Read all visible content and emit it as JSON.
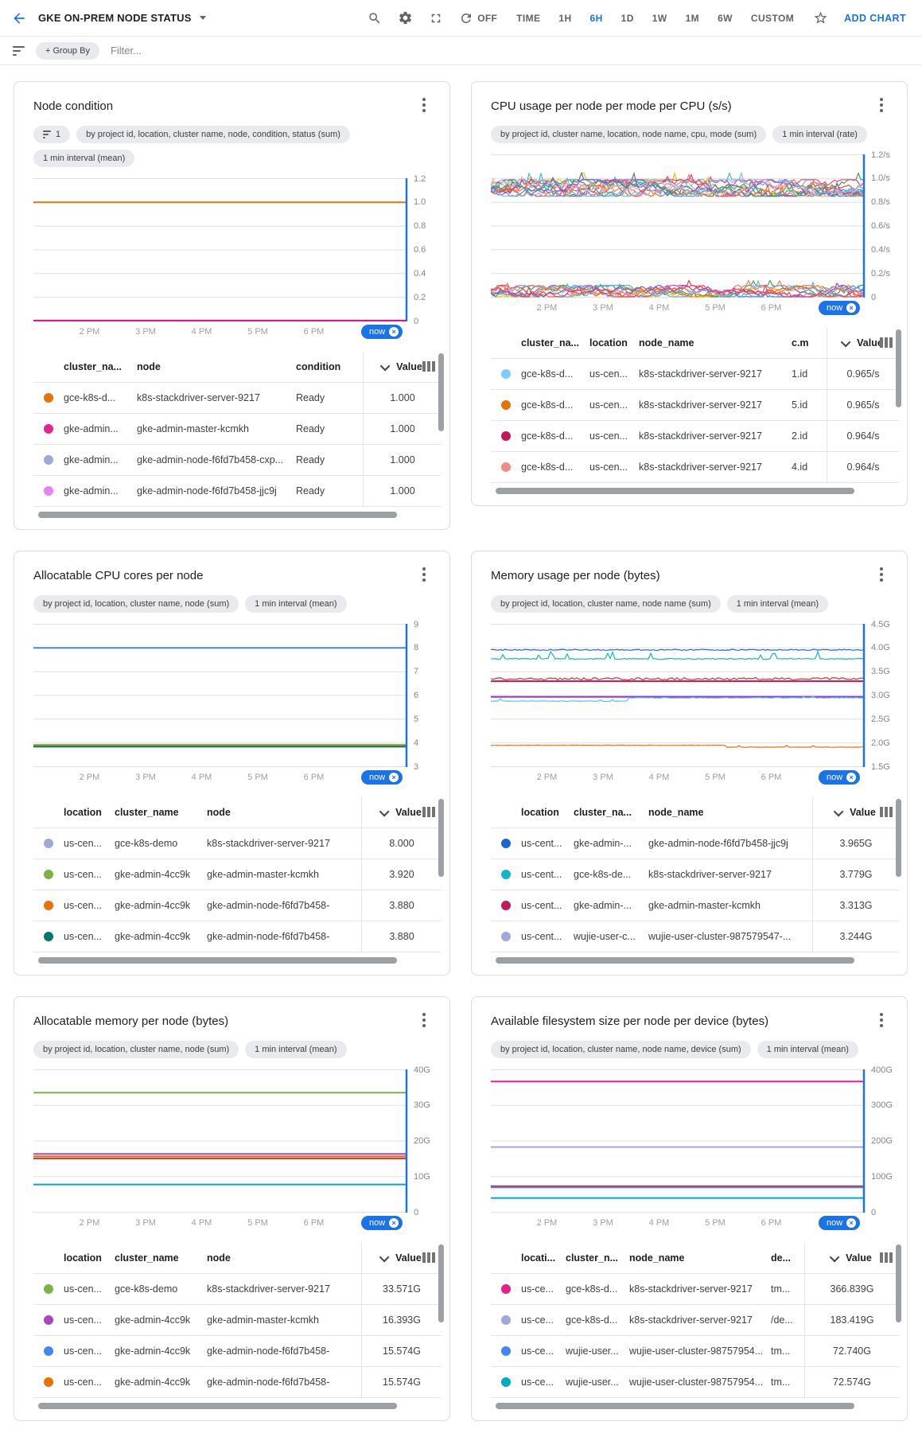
{
  "app_bar": {
    "title": "GKE ON-PREM NODE STATUS",
    "refresh_label": "OFF",
    "time_ranges": [
      "TIME",
      "1H",
      "6H",
      "1D",
      "1W",
      "1M",
      "6W",
      "CUSTOM"
    ],
    "active_range": "6H",
    "add_chart_label": "ADD CHART"
  },
  "filter_bar": {
    "group_by_label": "+ Group By",
    "filter_placeholder": "Filter..."
  },
  "colors": {
    "accent_blue": "#1a73e8",
    "now_line": "#1a73e8",
    "gridline": "#e0e0e0"
  },
  "cards": [
    {
      "title": "Node condition",
      "filter_chip_count": "1",
      "chips": [
        "by project id, location, cluster name, node, condition, status (sum)",
        "1 min interval (mean)"
      ],
      "y_labels": [
        "1.2",
        "1.0",
        "0.8",
        "0.6",
        "0.4",
        "0.2",
        "0"
      ],
      "x_labels": [
        "2 PM",
        "3 PM",
        "4 PM",
        "5 PM",
        "6 PM"
      ],
      "now_label": "now",
      "chart": {
        "type": "line",
        "ymin": 0,
        "ymax": 1.2,
        "series": [
          {
            "color": "#e8710a",
            "style": "flat",
            "value": 1.0
          },
          {
            "color": "#f50087",
            "style": "flat",
            "value": 0.004
          }
        ]
      },
      "table": {
        "columns": [
          "cluster_na...",
          "node",
          "condition"
        ],
        "value_header": "Value",
        "rows": [
          {
            "dot": "#e8710a",
            "cells": [
              "gce-k8s-d...",
              "k8s-stackdriver-server-9217",
              "Ready"
            ],
            "value": "1.000"
          },
          {
            "dot": "#e52592",
            "cells": [
              "gke-admin...",
              "gke-admin-master-kcmkh",
              "Ready"
            ],
            "value": "1.000"
          },
          {
            "dot": "#9fa8da",
            "cells": [
              "gke-admin...",
              "gke-admin-node-f6fd7b458-cxp...",
              "Ready"
            ],
            "value": "1.000"
          },
          {
            "dot": "#ea80fc",
            "cells": [
              "gke-admin...",
              "gke-admin-node-f6fd7b458-jjc9j",
              "Ready"
            ],
            "value": "1.000"
          }
        ]
      }
    },
    {
      "title": "CPU usage per node per mode per CPU (s/s)",
      "chips": [
        "by project id, cluster name, location, node name, cpu, mode (sum)",
        "1 min interval (rate)"
      ],
      "y_labels": [
        "1.2/s",
        "1.0/s",
        "0.8/s",
        "0.6/s",
        "0.4/s",
        "0.2/s",
        "0"
      ],
      "x_labels": [
        "2 PM",
        "3 PM",
        "4 PM",
        "5 PM",
        "6 PM"
      ],
      "now_label": "now",
      "chart": {
        "type": "line",
        "ymin": 0,
        "ymax": 1.2,
        "bands": [
          {
            "base": 0.92,
            "amp": 0.07,
            "count": 14
          },
          {
            "base": 0.05,
            "amp": 0.05,
            "count": 10
          }
        ],
        "palette": [
          "#4285f4",
          "#ea4335",
          "#fbbc04",
          "#34a853",
          "#ff6d01",
          "#46bdc6",
          "#7baaf7",
          "#f07b72",
          "#ab47bc",
          "#ec407a",
          "#5c6bc0",
          "#26a69a",
          "#8ab4f8",
          "#f6aea9"
        ]
      },
      "table": {
        "columns": [
          "cluster_na...",
          "location",
          "node_name",
          "c.m"
        ],
        "value_header": "Value",
        "rows": [
          {
            "dot": "#7fcbfa",
            "cells": [
              "gce-k8s-d...",
              "us-cen...",
              "k8s-stackdriver-server-9217",
              "1.id"
            ],
            "value": "0.965/s"
          },
          {
            "dot": "#e8710a",
            "cells": [
              "gce-k8s-d...",
              "us-cen...",
              "k8s-stackdriver-server-9217",
              "5.id"
            ],
            "value": "0.965/s"
          },
          {
            "dot": "#c2185b",
            "cells": [
              "gce-k8s-d...",
              "us-cen...",
              "k8s-stackdriver-server-9217",
              "2.id"
            ],
            "value": "0.964/s"
          },
          {
            "dot": "#f28b82",
            "cells": [
              "gce-k8s-d...",
              "us-cen...",
              "k8s-stackdriver-server-9217",
              "4.id"
            ],
            "value": "0.964/s"
          }
        ]
      }
    },
    {
      "title": "Allocatable CPU cores per node",
      "chips": [
        "by project id, location, cluster name, node (sum)",
        "1 min interval (mean)"
      ],
      "y_labels": [
        "9",
        "8",
        "7",
        "6",
        "5",
        "4",
        "3"
      ],
      "x_labels": [
        "2 PM",
        "3 PM",
        "4 PM",
        "5 PM",
        "6 PM"
      ],
      "now_label": "now",
      "chart": {
        "type": "line",
        "ymin": 3,
        "ymax": 9,
        "series": [
          {
            "color": "#4285f4",
            "style": "flat",
            "value": 8.0
          },
          {
            "color": "#7cb342",
            "style": "flat",
            "value": 3.92
          },
          {
            "color": "#e8710a",
            "style": "flat",
            "value": 3.87
          },
          {
            "color": "#00796b",
            "style": "flat",
            "value": 3.84
          }
        ]
      },
      "table": {
        "columns": [
          "location",
          "cluster_name",
          "node"
        ],
        "value_header": "Value",
        "rows": [
          {
            "dot": "#9fa8da",
            "cells": [
              "us-cen...",
              "gce-k8s-demo",
              "k8s-stackdriver-server-9217"
            ],
            "value": "8.000"
          },
          {
            "dot": "#7cb342",
            "cells": [
              "us-cen...",
              "gke-admin-4cc9k",
              "gke-admin-master-kcmkh"
            ],
            "value": "3.920"
          },
          {
            "dot": "#e8710a",
            "cells": [
              "us-cen...",
              "gke-admin-4cc9k",
              "gke-admin-node-f6fd7b458-"
            ],
            "value": "3.880"
          },
          {
            "dot": "#00796b",
            "cells": [
              "us-cen...",
              "gke-admin-4cc9k",
              "gke-admin-node-f6fd7b458-"
            ],
            "value": "3.880"
          }
        ]
      }
    },
    {
      "title": "Memory usage per node (bytes)",
      "chips": [
        "by project id, location, cluster name, node name (sum)",
        "1 min interval (mean)"
      ],
      "y_labels": [
        "4.5G",
        "4.0G",
        "3.5G",
        "3.0G",
        "2.5G",
        "2.0G",
        "1.5G"
      ],
      "x_labels": [
        "2 PM",
        "3 PM",
        "4 PM",
        "5 PM",
        "6 PM"
      ],
      "now_label": "now",
      "chart": {
        "type": "line",
        "ymin": 1.5,
        "ymax": 4.5,
        "series": [
          {
            "color": "#1967d2",
            "style": "wiggle",
            "value": 3.96,
            "amp": 0.012
          },
          {
            "color": "#12b5cb",
            "style": "spiky",
            "value": 3.77,
            "amp": 0.1
          },
          {
            "color": "#d93025",
            "style": "wiggle",
            "value": 3.35,
            "amp": 0.025
          },
          {
            "color": "#c2185b",
            "style": "flat",
            "value": 3.3
          },
          {
            "color": "#9334e6",
            "style": "flat",
            "value": 2.97
          },
          {
            "color": "#4fc3f7",
            "style": "steps",
            "value": 2.88,
            "amp": 0.07
          },
          {
            "color": "#e8710a",
            "style": "stepdown",
            "value": 1.95,
            "amp": 0.04
          }
        ]
      },
      "table": {
        "columns": [
          "location",
          "cluster_na...",
          "node_name"
        ],
        "value_header": "Value",
        "rows": [
          {
            "dot": "#1967d2",
            "cells": [
              "us-cent...",
              "gke-admin-...",
              "gke-admin-node-f6fd7b458-jjc9j"
            ],
            "value": "3.965G"
          },
          {
            "dot": "#12b5cb",
            "cells": [
              "us-cent...",
              "gce-k8s-de...",
              "k8s-stackdriver-server-9217"
            ],
            "value": "3.779G"
          },
          {
            "dot": "#c2185b",
            "cells": [
              "us-cent...",
              "gke-admin-...",
              "gke-admin-master-kcmkh"
            ],
            "value": "3.313G"
          },
          {
            "dot": "#9fa8da",
            "cells": [
              "us-cent...",
              "wujie-user-c...",
              "wujie-user-cluster-987579547-..."
            ],
            "value": "3.244G"
          }
        ]
      }
    },
    {
      "title": "Allocatable memory per node (bytes)",
      "chips": [
        "by project id, location, cluster name, node (sum)",
        "1 min interval (mean)"
      ],
      "y_labels": [
        "40G",
        "30G",
        "20G",
        "10G",
        "0"
      ],
      "x_labels": [
        "2 PM",
        "3 PM",
        "4 PM",
        "5 PM",
        "6 PM"
      ],
      "now_label": "now",
      "chart": {
        "type": "line",
        "ymin": 0,
        "ymax": 40,
        "series": [
          {
            "color": "#7cb342",
            "style": "flat",
            "value": 33.57
          },
          {
            "color": "#ab47bc",
            "style": "flat",
            "value": 16.39
          },
          {
            "color": "#e8710a",
            "style": "flat",
            "value": 15.7
          },
          {
            "color": "#d93025",
            "style": "flat",
            "value": 15.1
          },
          {
            "color": "#00acc1",
            "style": "flat",
            "value": 7.8
          }
        ]
      },
      "table": {
        "columns": [
          "location",
          "cluster_name",
          "node"
        ],
        "value_header": "Value",
        "rows": [
          {
            "dot": "#7cb342",
            "cells": [
              "us-cen...",
              "gce-k8s-demo",
              "k8s-stackdriver-server-9217"
            ],
            "value": "33.571G"
          },
          {
            "dot": "#ab47bc",
            "cells": [
              "us-cen...",
              "gke-admin-4cc9k",
              "gke-admin-master-kcmkh"
            ],
            "value": "16.393G"
          },
          {
            "dot": "#4285f4",
            "cells": [
              "us-cen...",
              "gke-admin-4cc9k",
              "gke-admin-node-f6fd7b458-"
            ],
            "value": "15.574G"
          },
          {
            "dot": "#e8710a",
            "cells": [
              "us-cen...",
              "gke-admin-4cc9k",
              "gke-admin-node-f6fd7b458-"
            ],
            "value": "15.574G"
          }
        ]
      }
    },
    {
      "title": "Available filesystem size per node per device (bytes)",
      "chips": [
        "by project id, location, cluster name, node name, device (sum)",
        "1 min interval (mean)"
      ],
      "y_labels": [
        "400G",
        "300G",
        "200G",
        "100G",
        "0"
      ],
      "x_labels": [
        "2 PM",
        "3 PM",
        "4 PM",
        "5 PM",
        "6 PM"
      ],
      "now_label": "now",
      "chart": {
        "type": "line",
        "ymin": 0,
        "ymax": 400,
        "series": [
          {
            "color": "#e91e8c",
            "style": "flat",
            "value": 367
          },
          {
            "color": "#9fa8da",
            "style": "flat",
            "value": 183
          },
          {
            "color": "#d93025",
            "style": "flat",
            "value": 73
          },
          {
            "color": "#4285f4",
            "style": "flat",
            "value": 70
          },
          {
            "color": "#00acc1",
            "style": "flat",
            "value": 40
          }
        ]
      },
      "table": {
        "columns": [
          "locati...",
          "cluster_n...",
          "node_name",
          "de..."
        ],
        "value_header": "Value",
        "rows": [
          {
            "dot": "#e91e8c",
            "cells": [
              "us-ce...",
              "gce-k8s-d...",
              "k8s-stackdriver-server-9217",
              "tm..."
            ],
            "value": "366.839G"
          },
          {
            "dot": "#9fa8da",
            "cells": [
              "us-ce...",
              "gce-k8s-d...",
              "k8s-stackdriver-server-9217",
              "/de..."
            ],
            "value": "183.419G"
          },
          {
            "dot": "#4285f4",
            "cells": [
              "us-ce...",
              "wujie-user...",
              "wujie-user-cluster-98757954...",
              "tm..."
            ],
            "value": "72.740G"
          },
          {
            "dot": "#00acc1",
            "cells": [
              "us-ce...",
              "wujie-user...",
              "wujie-user-cluster-98757954...",
              "tm..."
            ],
            "value": "72.574G"
          }
        ]
      }
    }
  ]
}
